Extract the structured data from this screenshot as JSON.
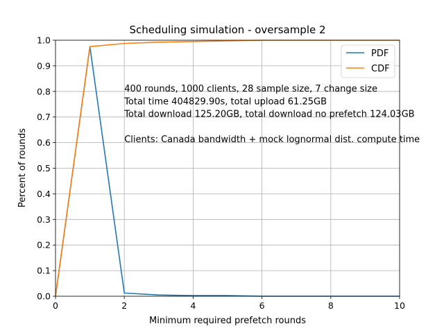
{
  "chart_data": {
    "type": "line",
    "title": "Scheduling simulation - oversample 2",
    "xlabel": "Minimum required prefetch rounds",
    "ylabel": "Percent of rounds",
    "xlim": [
      0,
      10
    ],
    "ylim": [
      0,
      1.0
    ],
    "x_ticks": [
      "0",
      "2",
      "4",
      "6",
      "8",
      "10"
    ],
    "y_ticks": [
      "0.0",
      "0.1",
      "0.2",
      "0.3",
      "0.4",
      "0.5",
      "0.6",
      "0.7",
      "0.8",
      "0.9",
      "1.0"
    ],
    "grid": true,
    "legend_position": "top-right",
    "x": [
      0,
      1,
      2,
      3,
      4,
      5,
      6,
      7,
      8,
      9,
      10
    ],
    "series": [
      {
        "name": "PDF",
        "color": "#1f77b4",
        "values": [
          0.0,
          0.975,
          0.0125,
          0.005,
          0.0025,
          0.0025,
          0.0,
          0.0,
          0.0,
          0.0,
          0.0
        ]
      },
      {
        "name": "CDF",
        "color": "#ff7f0e",
        "values": [
          0.0,
          0.975,
          0.9875,
          0.9925,
          0.995,
          0.9975,
          1.0,
          1.0,
          1.0,
          1.0,
          1.0
        ]
      }
    ],
    "annotations": [
      "400 rounds, 1000 clients, 28 sample size, 7 change size",
      "Total time 404829.90s, total upload 61.25GB",
      "Total download 125.20GB, total download no prefetch 124.03GB",
      "",
      "Clients: Canada bandwidth + mock lognormal dist. compute time"
    ]
  }
}
